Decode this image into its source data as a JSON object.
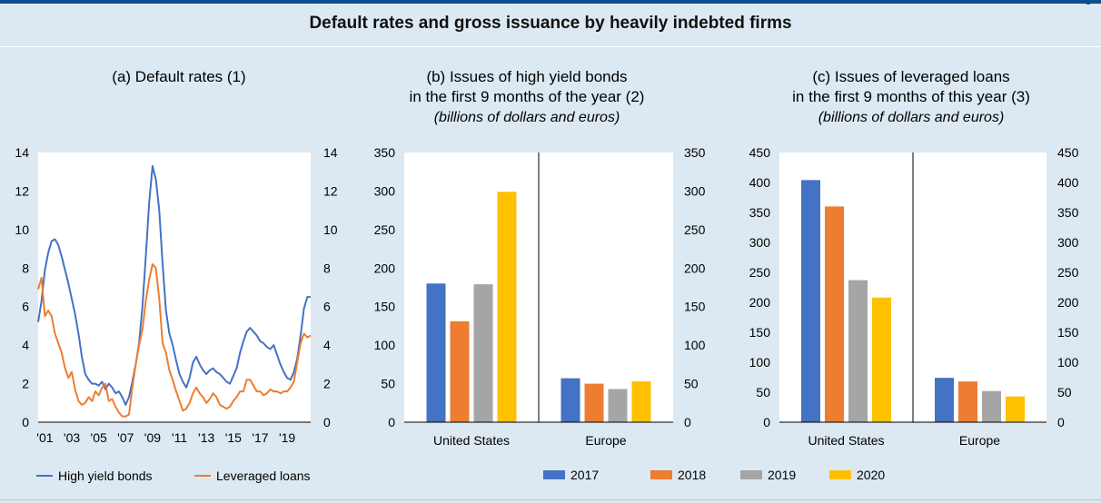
{
  "header": {
    "main_title": "Default rates and gross issuance by heavily indebted firms",
    "corner_label": "g"
  },
  "colors": {
    "background": "#dde9f2",
    "plot_bg": "#ffffff",
    "line_hy": "#4472c4",
    "line_ll": "#ed7d31",
    "bar_2017": "#4472c4",
    "bar_2018": "#ed7d31",
    "bar_2019": "#a5a5a5",
    "bar_2020": "#ffc000"
  },
  "legend_a": [
    {
      "label": "High yield bonds",
      "color": "#4472c4"
    },
    {
      "label": "Leveraged loans",
      "color": "#ed7d31"
    }
  ],
  "legend_bc": [
    {
      "label": "2017",
      "color": "#4472c4"
    },
    {
      "label": "2018",
      "color": "#ed7d31"
    },
    {
      "label": "2019",
      "color": "#a5a5a5"
    },
    {
      "label": "2020",
      "color": "#ffc000"
    }
  ],
  "chart_data": [
    {
      "type": "line",
      "title": "(a) Default rates (1)",
      "ylim": [
        0,
        14
      ],
      "xlim": [
        2000.5,
        2020.75
      ],
      "yticks": [
        0,
        2,
        4,
        6,
        8,
        10,
        12,
        14
      ],
      "xtick_labels": [
        "'01",
        "'03",
        "'05",
        "'07",
        "'09",
        "'11",
        "'13",
        "'15",
        "'17",
        "'19"
      ],
      "xtick_values": [
        2001,
        2003,
        2005,
        2007,
        2009,
        2011,
        2013,
        2015,
        2017,
        2019
      ],
      "series": [
        {
          "name": "High yield bonds",
          "x": [
            2000.5,
            2000.75,
            2001.0,
            2001.25,
            2001.5,
            2001.75,
            2002.0,
            2002.25,
            2002.5,
            2002.75,
            2003.0,
            2003.25,
            2003.5,
            2003.75,
            2004.0,
            2004.25,
            2004.5,
            2004.75,
            2005.0,
            2005.25,
            2005.5,
            2005.75,
            2006.0,
            2006.25,
            2006.5,
            2006.75,
            2007.0,
            2007.25,
            2007.5,
            2007.75,
            2008.0,
            2008.25,
            2008.5,
            2008.75,
            2009.0,
            2009.25,
            2009.5,
            2009.75,
            2010.0,
            2010.25,
            2010.5,
            2010.75,
            2011.0,
            2011.25,
            2011.5,
            2011.75,
            2012.0,
            2012.25,
            2012.5,
            2012.75,
            2013.0,
            2013.25,
            2013.5,
            2013.75,
            2014.0,
            2014.25,
            2014.5,
            2014.75,
            2015.0,
            2015.25,
            2015.5,
            2015.75,
            2016.0,
            2016.25,
            2016.5,
            2016.75,
            2017.0,
            2017.25,
            2017.5,
            2017.75,
            2018.0,
            2018.25,
            2018.5,
            2018.75,
            2019.0,
            2019.25,
            2019.5,
            2019.75,
            2020.0,
            2020.25,
            2020.5,
            2020.75
          ],
          "y": [
            5.2,
            6.3,
            7.9,
            8.8,
            9.4,
            9.5,
            9.2,
            8.6,
            7.9,
            7.2,
            6.4,
            5.6,
            4.6,
            3.4,
            2.5,
            2.2,
            2.0,
            2.0,
            1.9,
            2.1,
            1.7,
            2.0,
            1.8,
            1.5,
            1.6,
            1.3,
            0.9,
            1.3,
            2.1,
            3.0,
            4.1,
            6.0,
            8.6,
            11.4,
            13.3,
            12.6,
            11.0,
            8.2,
            5.8,
            4.6,
            4.0,
            3.2,
            2.5,
            2.1,
            1.8,
            2.3,
            3.1,
            3.4,
            3.0,
            2.7,
            2.5,
            2.7,
            2.8,
            2.6,
            2.5,
            2.3,
            2.1,
            2.0,
            2.4,
            2.8,
            3.6,
            4.2,
            4.7,
            4.9,
            4.7,
            4.5,
            4.2,
            4.1,
            3.9,
            3.8,
            4.0,
            3.5,
            3.0,
            2.6,
            2.3,
            2.2,
            2.6,
            3.3,
            4.5,
            5.9,
            6.5,
            6.5
          ]
        },
        {
          "name": "Leveraged loans",
          "x": [
            2000.5,
            2000.75,
            2001.0,
            2001.25,
            2001.5,
            2001.75,
            2002.0,
            2002.25,
            2002.5,
            2002.75,
            2003.0,
            2003.25,
            2003.5,
            2003.75,
            2004.0,
            2004.25,
            2004.5,
            2004.75,
            2005.0,
            2005.25,
            2005.5,
            2005.75,
            2006.0,
            2006.25,
            2006.5,
            2006.75,
            2007.0,
            2007.25,
            2007.5,
            2007.75,
            2008.0,
            2008.25,
            2008.5,
            2008.75,
            2009.0,
            2009.25,
            2009.5,
            2009.75,
            2010.0,
            2010.25,
            2010.5,
            2010.75,
            2011.0,
            2011.25,
            2011.5,
            2011.75,
            2012.0,
            2012.25,
            2012.5,
            2012.75,
            2013.0,
            2013.25,
            2013.5,
            2013.75,
            2014.0,
            2014.25,
            2014.5,
            2014.75,
            2015.0,
            2015.25,
            2015.5,
            2015.75,
            2016.0,
            2016.25,
            2016.5,
            2016.75,
            2017.0,
            2017.25,
            2017.5,
            2017.75,
            2018.0,
            2018.25,
            2018.5,
            2018.75,
            2019.0,
            2019.25,
            2019.5,
            2019.75,
            2020.0,
            2020.25,
            2020.5,
            2020.75
          ],
          "y": [
            6.9,
            7.5,
            5.5,
            5.8,
            5.5,
            4.6,
            4.1,
            3.6,
            2.8,
            2.3,
            2.6,
            1.7,
            1.1,
            0.9,
            1.0,
            1.3,
            1.1,
            1.6,
            1.4,
            1.8,
            2.0,
            1.1,
            1.2,
            0.8,
            0.5,
            0.3,
            0.3,
            0.4,
            1.8,
            3.0,
            4.0,
            4.8,
            6.3,
            7.4,
            8.2,
            8.0,
            6.4,
            4.1,
            3.6,
            2.7,
            2.2,
            1.6,
            1.1,
            0.6,
            0.7,
            1.0,
            1.5,
            1.8,
            1.5,
            1.3,
            1.0,
            1.2,
            1.5,
            1.3,
            0.9,
            0.8,
            0.7,
            0.8,
            1.1,
            1.3,
            1.6,
            1.6,
            2.2,
            2.2,
            1.9,
            1.6,
            1.6,
            1.4,
            1.5,
            1.7,
            1.6,
            1.6,
            1.5,
            1.6,
            1.6,
            1.8,
            2.1,
            3.1,
            4.1,
            4.6,
            4.4,
            4.5
          ]
        }
      ]
    },
    {
      "type": "bar",
      "title": "(b) Issues of high yield bonds",
      "subtitle": "in the first 9 months of the year (2)",
      "unit_note": "(billions of dollars and euros)",
      "ylim": [
        0,
        350
      ],
      "yticks": [
        0,
        50,
        100,
        150,
        200,
        250,
        300,
        350
      ],
      "categories": [
        "United States",
        "Europe"
      ],
      "series": [
        {
          "name": "2017",
          "values": [
            180,
            57
          ]
        },
        {
          "name": "2018",
          "values": [
            131,
            50
          ]
        },
        {
          "name": "2019",
          "values": [
            179,
            43
          ]
        },
        {
          "name": "2020",
          "values": [
            299,
            53
          ]
        }
      ]
    },
    {
      "type": "bar",
      "title": "(c) Issues of leveraged loans",
      "subtitle": "in the first 9 months of this year (3)",
      "unit_note": "(billions of dollars and euros)",
      "ylim": [
        0,
        450
      ],
      "yticks": [
        0,
        50,
        100,
        150,
        200,
        250,
        300,
        350,
        400,
        450
      ],
      "categories": [
        "United States",
        "Europe"
      ],
      "series": [
        {
          "name": "2017",
          "values": [
            404,
            74
          ]
        },
        {
          "name": "2018",
          "values": [
            360,
            68
          ]
        },
        {
          "name": "2019",
          "values": [
            237,
            52
          ]
        },
        {
          "name": "2020",
          "values": [
            208,
            43
          ]
        }
      ]
    }
  ]
}
